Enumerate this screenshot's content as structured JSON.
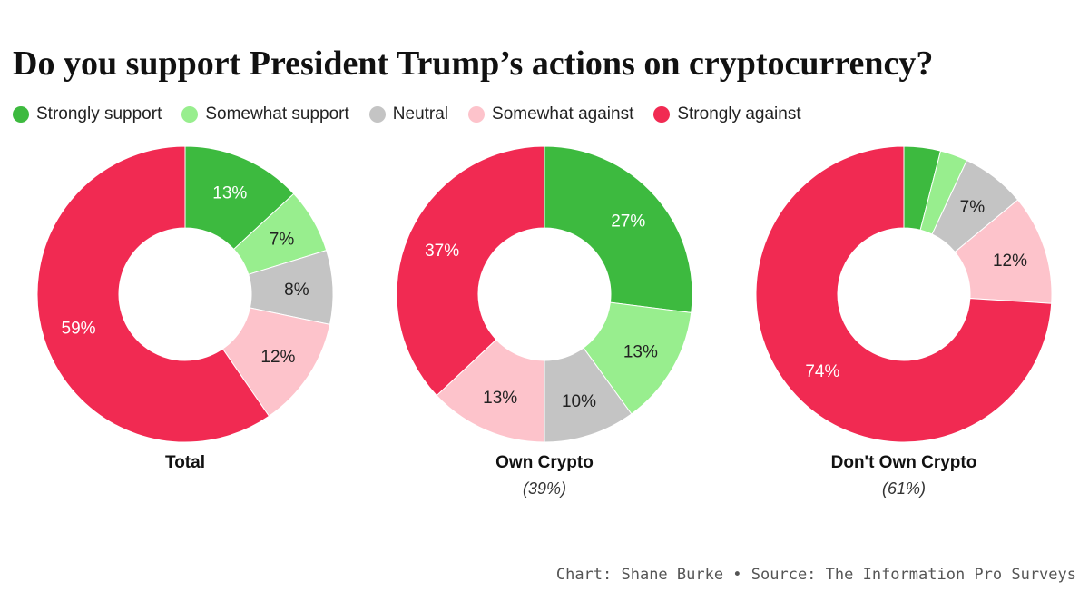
{
  "chart_data": {
    "type": "pie",
    "title": "Do you support President Trump’s actions on cryptocurrency?",
    "legend": {
      "placement": "top-left",
      "entries": [
        {
          "name": "Strongly support",
          "color": "#3dba3f"
        },
        {
          "name": "Somewhat support",
          "color": "#98ee8e"
        },
        {
          "name": "Neutral",
          "color": "#c4c4c4"
        },
        {
          "name": "Somewhat against",
          "color": "#fdc3cb"
        },
        {
          "name": "Strongly against",
          "color": "#f12a52"
        }
      ]
    },
    "charts": [
      {
        "name": "Total",
        "subtitle": "",
        "values": [
          13,
          7,
          8,
          12,
          59
        ],
        "labels": [
          "13%",
          "7%",
          "8%",
          "12%",
          "59%"
        ]
      },
      {
        "name": "Own Crypto",
        "subtitle": "(39%)",
        "values": [
          27,
          13,
          10,
          13,
          37
        ],
        "labels": [
          "27%",
          "13%",
          "10%",
          "13%",
          "37%"
        ]
      },
      {
        "name": "Don't Own Crypto",
        "subtitle": "(61%)",
        "values": [
          4,
          3,
          7,
          12,
          74
        ],
        "labels": [
          "",
          "",
          "7%",
          "12%",
          "74%"
        ]
      }
    ],
    "footer": "Chart: Shane Burke • Source: The Information Pro Surveys"
  }
}
